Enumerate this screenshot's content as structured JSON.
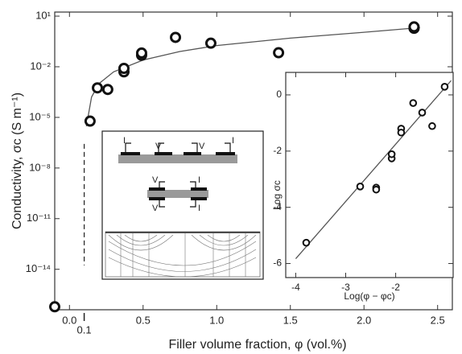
{
  "chart_data": [
    {
      "type": "scatter",
      "xlabel": "Filler volume fraction, φ (vol.%)",
      "ylabel": "Conductivity, σc (S m⁻¹)",
      "xlim": [
        -0.1,
        2.6
      ],
      "ylim": [
        4e-17,
        17.4
      ],
      "log_y": true,
      "xticks": [
        {
          "value": 0,
          "label": "0.0"
        },
        0.5,
        {
          "value": 1,
          "label": "1.0"
        },
        1.5,
        {
          "value": 2,
          "label": "2.0"
        },
        2.5
      ],
      "yticks": [
        {
          "value": 10,
          "label": "10¹"
        },
        {
          "value": 0.01,
          "label": "10⁻²"
        },
        {
          "value": 1e-05,
          "label": "10⁻⁵"
        },
        {
          "value": 1e-08,
          "label": "10⁻⁸"
        },
        {
          "value": 1e-11,
          "label": "10⁻¹¹"
        },
        {
          "value": 1e-14,
          "label": "10⁻¹⁴"
        }
      ],
      "threshold": {
        "value": 0.1,
        "label": "0.1"
      },
      "series": [
        {
          "color": "#111111",
          "x": [
            -0.1,
            0.14,
            0.19,
            0.26,
            0.37,
            0.37,
            0.49,
            0.49,
            0.72,
            0.96,
            1.42,
            2.34,
            2.34
          ],
          "values": [
            6e-17,
            6e-06,
            0.00056,
            0.00045,
            0.005,
            0.008,
            0.048,
            0.065,
            0.55,
            0.25,
            0.068,
            1.9,
            2.3
          ]
        }
      ],
      "fit": {
        "color": "#555555",
        "x": [
          0.115,
          0.15,
          0.2,
          0.3,
          0.5,
          0.75,
          1,
          1.5,
          2,
          2.38
        ],
        "values": [
          3e-06,
          0.00016,
          0.001,
          0.005,
          0.025,
          0.08,
          0.18,
          0.5,
          1.1,
          2.1
        ]
      }
    },
    {
      "type": "scatter",
      "xlabel": "Log(φ − φc)",
      "ylabel": "Log σc",
      "xlim": [
        -4.2,
        -0.85
      ],
      "ylim": [
        -6.5,
        0.8
      ],
      "xticks": [
        -4,
        -3,
        -2
      ],
      "yticks": [
        0,
        -2,
        -4,
        -6
      ],
      "series": [
        {
          "color": "#111111",
          "x": [
            -3.79,
            -2.71,
            -2.39,
            -2.39,
            -2.08,
            -2.08,
            -1.89,
            -1.89,
            -1.65,
            -1.47,
            -1.27,
            -1.02
          ],
          "values": [
            -5.26,
            -3.26,
            -3.3,
            -3.37,
            -2.26,
            -2.11,
            -1.2,
            -1.34,
            -0.29,
            -0.63,
            -1.11,
            0.29
          ]
        }
      ],
      "fit": {
        "color": "#555555",
        "x": [
          -4,
          -0.89
        ],
        "values": [
          -5.83,
          0.51
        ]
      }
    }
  ],
  "inset_diagram": {
    "labels": [
      "I",
      "V",
      "V",
      "I",
      "V",
      "I",
      "V",
      "I"
    ]
  }
}
